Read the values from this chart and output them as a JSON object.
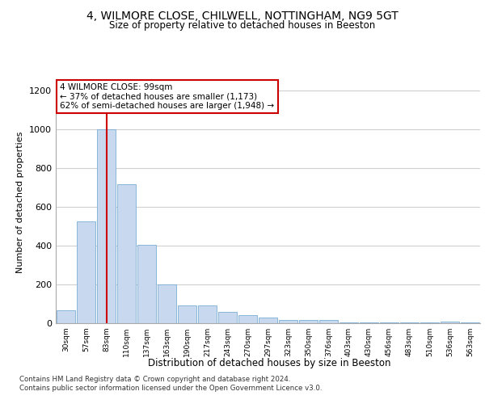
{
  "title_line1": "4, WILMORE CLOSE, CHILWELL, NOTTINGHAM, NG9 5GT",
  "title_line2": "Size of property relative to detached houses in Beeston",
  "xlabel": "Distribution of detached houses by size in Beeston",
  "ylabel": "Number of detached properties",
  "bar_color": "#c8d8ee",
  "bar_edge_color": "#7aadd4",
  "categories": [
    "30sqm",
    "57sqm",
    "83sqm",
    "110sqm",
    "137sqm",
    "163sqm",
    "190sqm",
    "217sqm",
    "243sqm",
    "270sqm",
    "297sqm",
    "323sqm",
    "350sqm",
    "376sqm",
    "403sqm",
    "430sqm",
    "456sqm",
    "483sqm",
    "510sqm",
    "536sqm",
    "563sqm"
  ],
  "values": [
    65,
    525,
    1000,
    715,
    405,
    198,
    90,
    90,
    58,
    40,
    30,
    17,
    17,
    17,
    5,
    5,
    5,
    5,
    5,
    10,
    5
  ],
  "annotation_text": "4 WILMORE CLOSE: 99sqm\n← 37% of detached houses are smaller (1,173)\n62% of semi-detached houses are larger (1,948) →",
  "annotation_box_color": "#ffffff",
  "annotation_box_edge_color": "#cc0000",
  "vline_color": "#cc0000",
  "vline_x": 2.0,
  "ylim": [
    0,
    1250
  ],
  "yticks": [
    0,
    200,
    400,
    600,
    800,
    1000,
    1200
  ],
  "footer_line1": "Contains HM Land Registry data © Crown copyright and database right 2024.",
  "footer_line2": "Contains public sector information licensed under the Open Government Licence v3.0.",
  "bg_color": "#ffffff",
  "grid_color": "#d0d0d0"
}
